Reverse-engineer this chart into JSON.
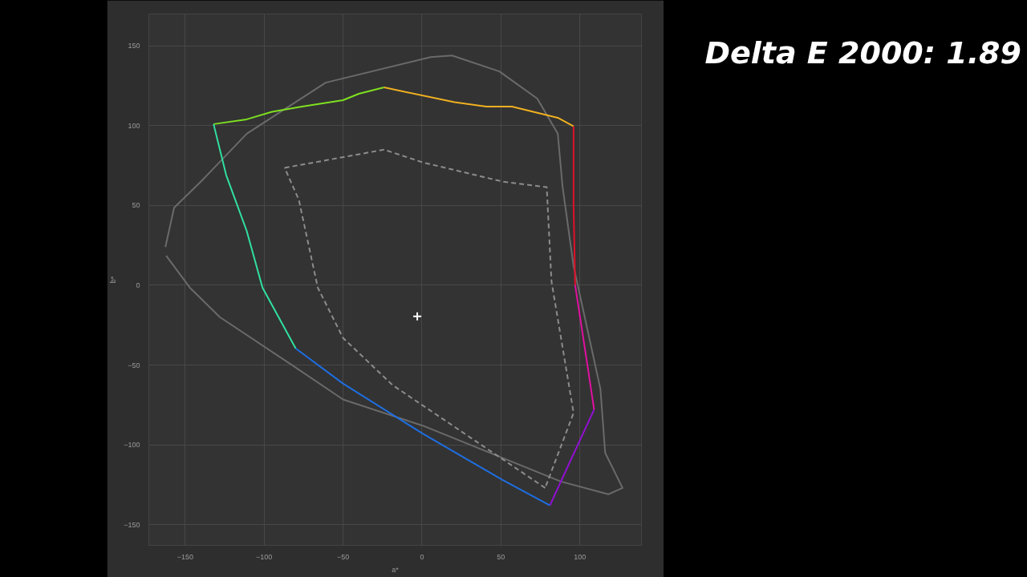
{
  "chart_data": {
    "type": "line",
    "xlabel": "a*",
    "ylabel": "b*",
    "annotations": [
      "Delta E 2000: 1.89"
    ],
    "xlim": [
      -173,
      139
    ],
    "ylim": [
      -163,
      170
    ],
    "xticks": [
      -150,
      -100,
      -50,
      0,
      50,
      100
    ],
    "yticks": [
      -150,
      -100,
      -50,
      0,
      50,
      100,
      150
    ],
    "grid": true,
    "marker": "none",
    "line_style": "solid",
    "series": [
      {
        "color": "#6a6a6a",
        "x": [
          -162.5,
          -157,
          -140,
          -111,
          -61,
          5.5,
          19,
          49,
          73,
          86,
          89,
          96,
          113,
          116,
          127,
          118,
          88,
          0.5,
          -50,
          -80,
          -128,
          -147,
          -162
        ],
        "values": [
          24,
          48.6,
          65,
          95,
          127,
          143,
          144,
          134,
          117,
          95,
          62,
          12,
          -65,
          -105,
          -127,
          -131,
          -123,
          -88,
          -71.6,
          -51.6,
          -20,
          -1.5,
          18.5
        ]
      },
      {
        "color": "#8c8c8c",
        "line_style": "dashed",
        "x": [
          -87,
          -24,
          0.5,
          51,
          79,
          82,
          96,
          78
        ],
        "values": [
          73.6,
          85,
          77,
          65,
          61.5,
          2.5,
          -80,
          -127
        ]
      },
      {
        "color": "#8c8c8c",
        "line_style": "dashed",
        "x": [
          78,
          -18.6,
          -50,
          -66,
          -78,
          -87
        ],
        "values": [
          -127,
          -62.6,
          -33,
          -1.5,
          53.6,
          73.6
        ]
      },
      {
        "color": "#7ee020",
        "x": [
          -132,
          -111,
          -95,
          -76,
          -50,
          -40,
          -24
        ],
        "values": [
          101,
          104,
          108.7,
          112,
          116,
          120,
          124
        ]
      },
      {
        "color": "#f0b020",
        "x": [
          -24,
          20.6,
          40.7,
          57,
          86,
          96
        ],
        "values": [
          124,
          114.7,
          112,
          112,
          105,
          99.6
        ]
      },
      {
        "color": "#e0102a",
        "x": [
          96,
          96,
          97
        ],
        "values": [
          99.6,
          50,
          0
        ]
      },
      {
        "color": "#e010a0",
        "x": [
          97,
          105,
          109
        ],
        "values": [
          0,
          -51.6,
          -78
        ]
      },
      {
        "color": "#9010d0",
        "x": [
          109,
          94,
          81
        ],
        "values": [
          -78,
          -110,
          -138
        ]
      },
      {
        "color": "#1e6ee0",
        "x": [
          81,
          51,
          0.5,
          -50,
          -80
        ],
        "values": [
          -138,
          -122,
          -93,
          -61.6,
          -39.6
        ]
      },
      {
        "color": "#30e0a0",
        "x": [
          -80,
          -101,
          -111,
          -124,
          -132
        ],
        "values": [
          -39.6,
          -1.5,
          34,
          69,
          101
        ]
      },
      {
        "type": "scatter",
        "marker": "cross",
        "color": "#ffffff",
        "x": [
          -3
        ],
        "values": [
          -19.5
        ]
      }
    ]
  }
}
